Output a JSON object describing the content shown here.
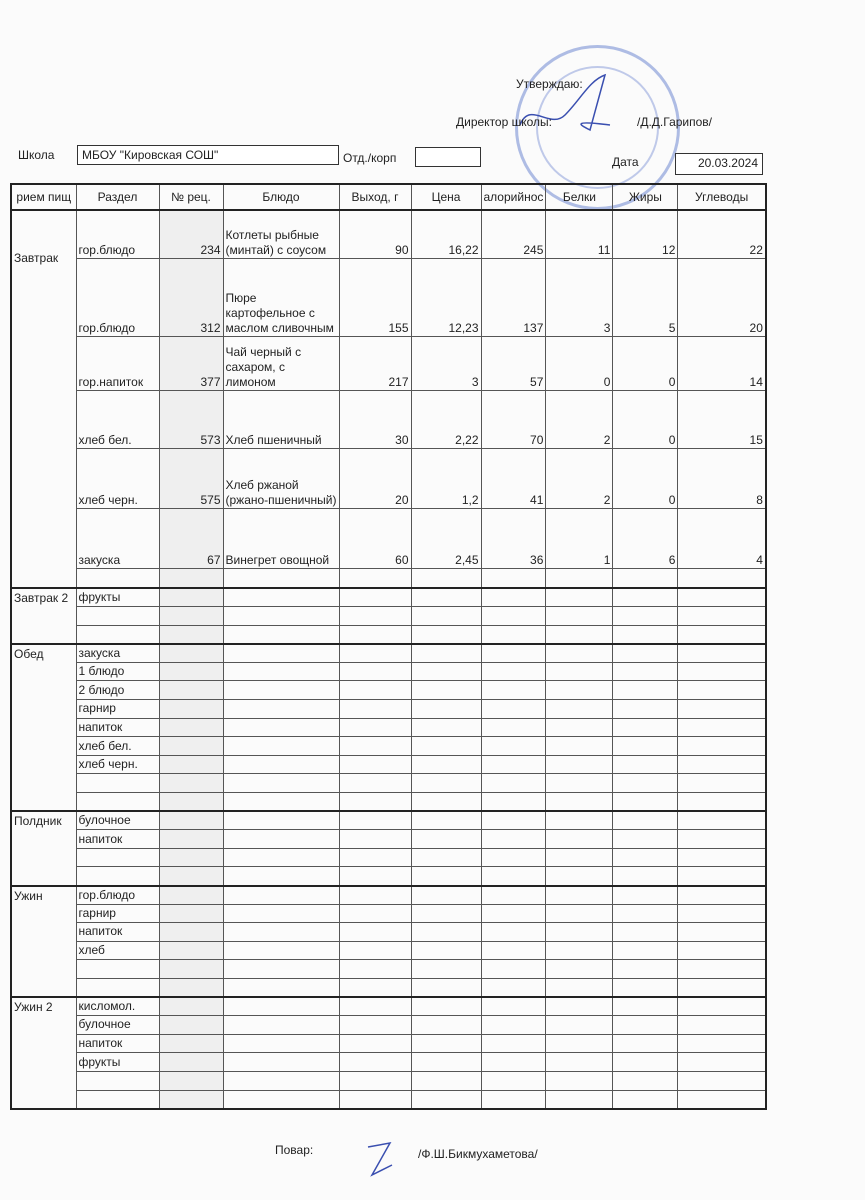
{
  "header": {
    "approve": "Утверждаю:",
    "director_label": "Директор школы:",
    "director_name": "/Д.Д.Гарипов/",
    "school_label": "Школа",
    "school": "МБОУ \"Кировская СОШ\"",
    "dept_label": "Отд./корп",
    "dept": "",
    "date_label": "Дата",
    "date": "20.03.2024"
  },
  "columns": [
    "рием пищ",
    "Раздел",
    "№ рец.",
    "Блюдо",
    "Выход, г",
    "Цена",
    "алорийнос",
    "Белки",
    "Жиры",
    "Углеводы"
  ],
  "meals": [
    {
      "name": "Завтрак",
      "rows": [
        {
          "section": "гор.блюдо",
          "rec": "234",
          "dish": "Котлеты рыбные (минтай) с соусом",
          "out": "90",
          "price": "16,22",
          "kcal": "245",
          "prot": "11",
          "fat": "12",
          "carb": "22"
        },
        {
          "section": "гор.блюдо",
          "rec": "312",
          "dish": "Пюре картофельное с маслом сливочным",
          "out": "155",
          "price": "12,23",
          "kcal": "137",
          "prot": "3",
          "fat": "5",
          "carb": "20"
        },
        {
          "section": "гор.напиток",
          "rec": "377",
          "dish": "Чай черный с сахаром, с лимоном",
          "out": "217",
          "price": "3",
          "kcal": "57",
          "prot": "0",
          "fat": "0",
          "carb": "14"
        },
        {
          "section": "хлеб бел.",
          "rec": "573",
          "dish": "Хлеб пшеничный",
          "out": "30",
          "price": "2,22",
          "kcal": "70",
          "prot": "2",
          "fat": "0",
          "carb": "15"
        },
        {
          "section": "хлеб черн.",
          "rec": "575",
          "dish": "Хлеб ржаной (ржано-пшеничный)",
          "out": "20",
          "price": "1,2",
          "kcal": "41",
          "prot": "2",
          "fat": "0",
          "carb": "8"
        },
        {
          "section": "закуска",
          "rec": "67",
          "dish": "Винегрет овощной",
          "out": "60",
          "price": "2,45",
          "kcal": "36",
          "prot": "1",
          "fat": "6",
          "carb": "4"
        },
        {
          "section": ""
        }
      ]
    },
    {
      "name": "Завтрак 2",
      "rows": [
        {
          "section": "фрукты"
        },
        {
          "section": ""
        },
        {
          "section": ""
        }
      ]
    },
    {
      "name": "Обед",
      "rows": [
        {
          "section": "закуска"
        },
        {
          "section": "1 блюдо"
        },
        {
          "section": "2 блюдо"
        },
        {
          "section": "гарнир"
        },
        {
          "section": "напиток"
        },
        {
          "section": "хлеб бел."
        },
        {
          "section": "хлеб черн."
        },
        {
          "section": ""
        },
        {
          "section": ""
        }
      ]
    },
    {
      "name": "Полдник",
      "rows": [
        {
          "section": "булочное"
        },
        {
          "section": "напиток"
        },
        {
          "section": ""
        },
        {
          "section": ""
        }
      ]
    },
    {
      "name": "Ужин",
      "rows": [
        {
          "section": "гор.блюдо"
        },
        {
          "section": "гарнир"
        },
        {
          "section": "напиток"
        },
        {
          "section": "хлеб"
        },
        {
          "section": ""
        },
        {
          "section": ""
        }
      ]
    },
    {
      "name": "Ужин 2",
      "rows": [
        {
          "section": "кисломол."
        },
        {
          "section": "булочное"
        },
        {
          "section": "напиток"
        },
        {
          "section": "фрукты"
        },
        {
          "section": ""
        },
        {
          "section": ""
        }
      ]
    }
  ],
  "footer": {
    "cook_label": "Повар:",
    "cook_name": "/Ф.Ш.Бикмухаметова/"
  }
}
